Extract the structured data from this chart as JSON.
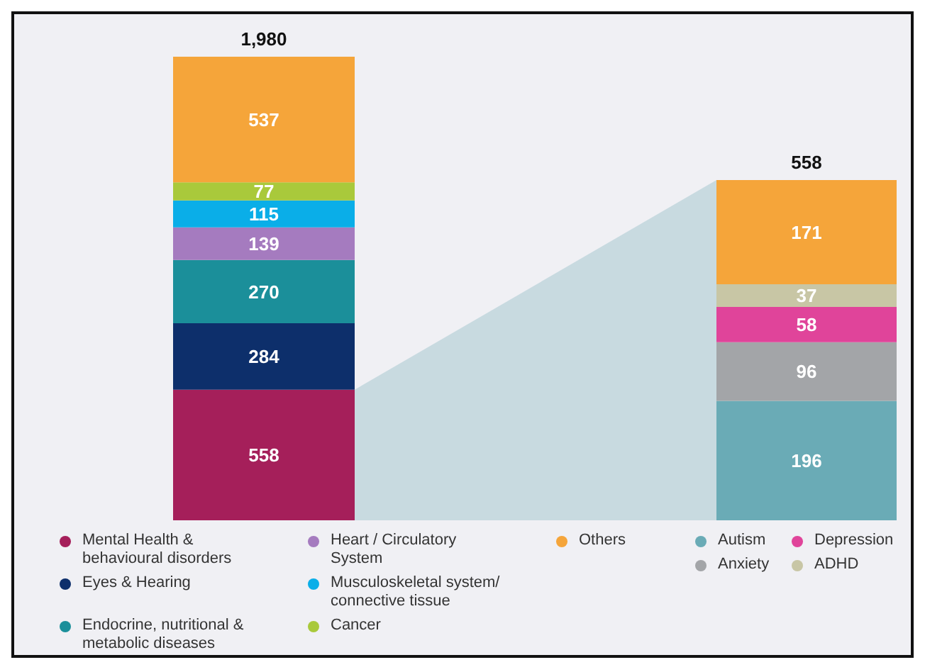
{
  "chart_data": [
    {
      "type": "bar",
      "stacked": true,
      "data_labels": true,
      "legend": "bottom",
      "categories": [
        null
      ],
      "totals": [
        "1,980"
      ],
      "series": [
        {
          "name": "Mental Health & behavioural disorders",
          "color": "#a51f5a",
          "values": [
            558
          ]
        },
        {
          "name": "Eyes & Hearing",
          "color": "#0d2f6b",
          "values": [
            284
          ]
        },
        {
          "name": "Endocrine, nutritional & metabolic diseases",
          "color": "#1b8f9a",
          "values": [
            270
          ]
        },
        {
          "name": "Heart / Circulatory System",
          "color": "#a57bbf",
          "values": [
            139
          ]
        },
        {
          "name": "Musculoskeletal system/ connective tissue",
          "color": "#0aaee8",
          "values": [
            115
          ]
        },
        {
          "name": "Cancer",
          "color": "#a9c93b",
          "values": [
            77
          ]
        },
        {
          "name": "Others",
          "color": "#f5a53a",
          "values": [
            537
          ]
        }
      ]
    },
    {
      "type": "bar",
      "stacked": true,
      "data_labels": true,
      "legend": "bottom",
      "categories": [
        null
      ],
      "totals": [
        "558"
      ],
      "series": [
        {
          "name": "Autism",
          "color": "#6aabb6",
          "values": [
            196
          ]
        },
        {
          "name": "Anxiety",
          "color": "#a3a5a8",
          "values": [
            96
          ]
        },
        {
          "name": "Depression",
          "color": "#e0449a",
          "values": [
            58
          ]
        },
        {
          "name": "ADHD",
          "color": "#c8c6a5",
          "values": [
            37
          ]
        },
        {
          "color": "#f5a53a",
          "values": [
            171
          ]
        }
      ]
    }
  ]
}
